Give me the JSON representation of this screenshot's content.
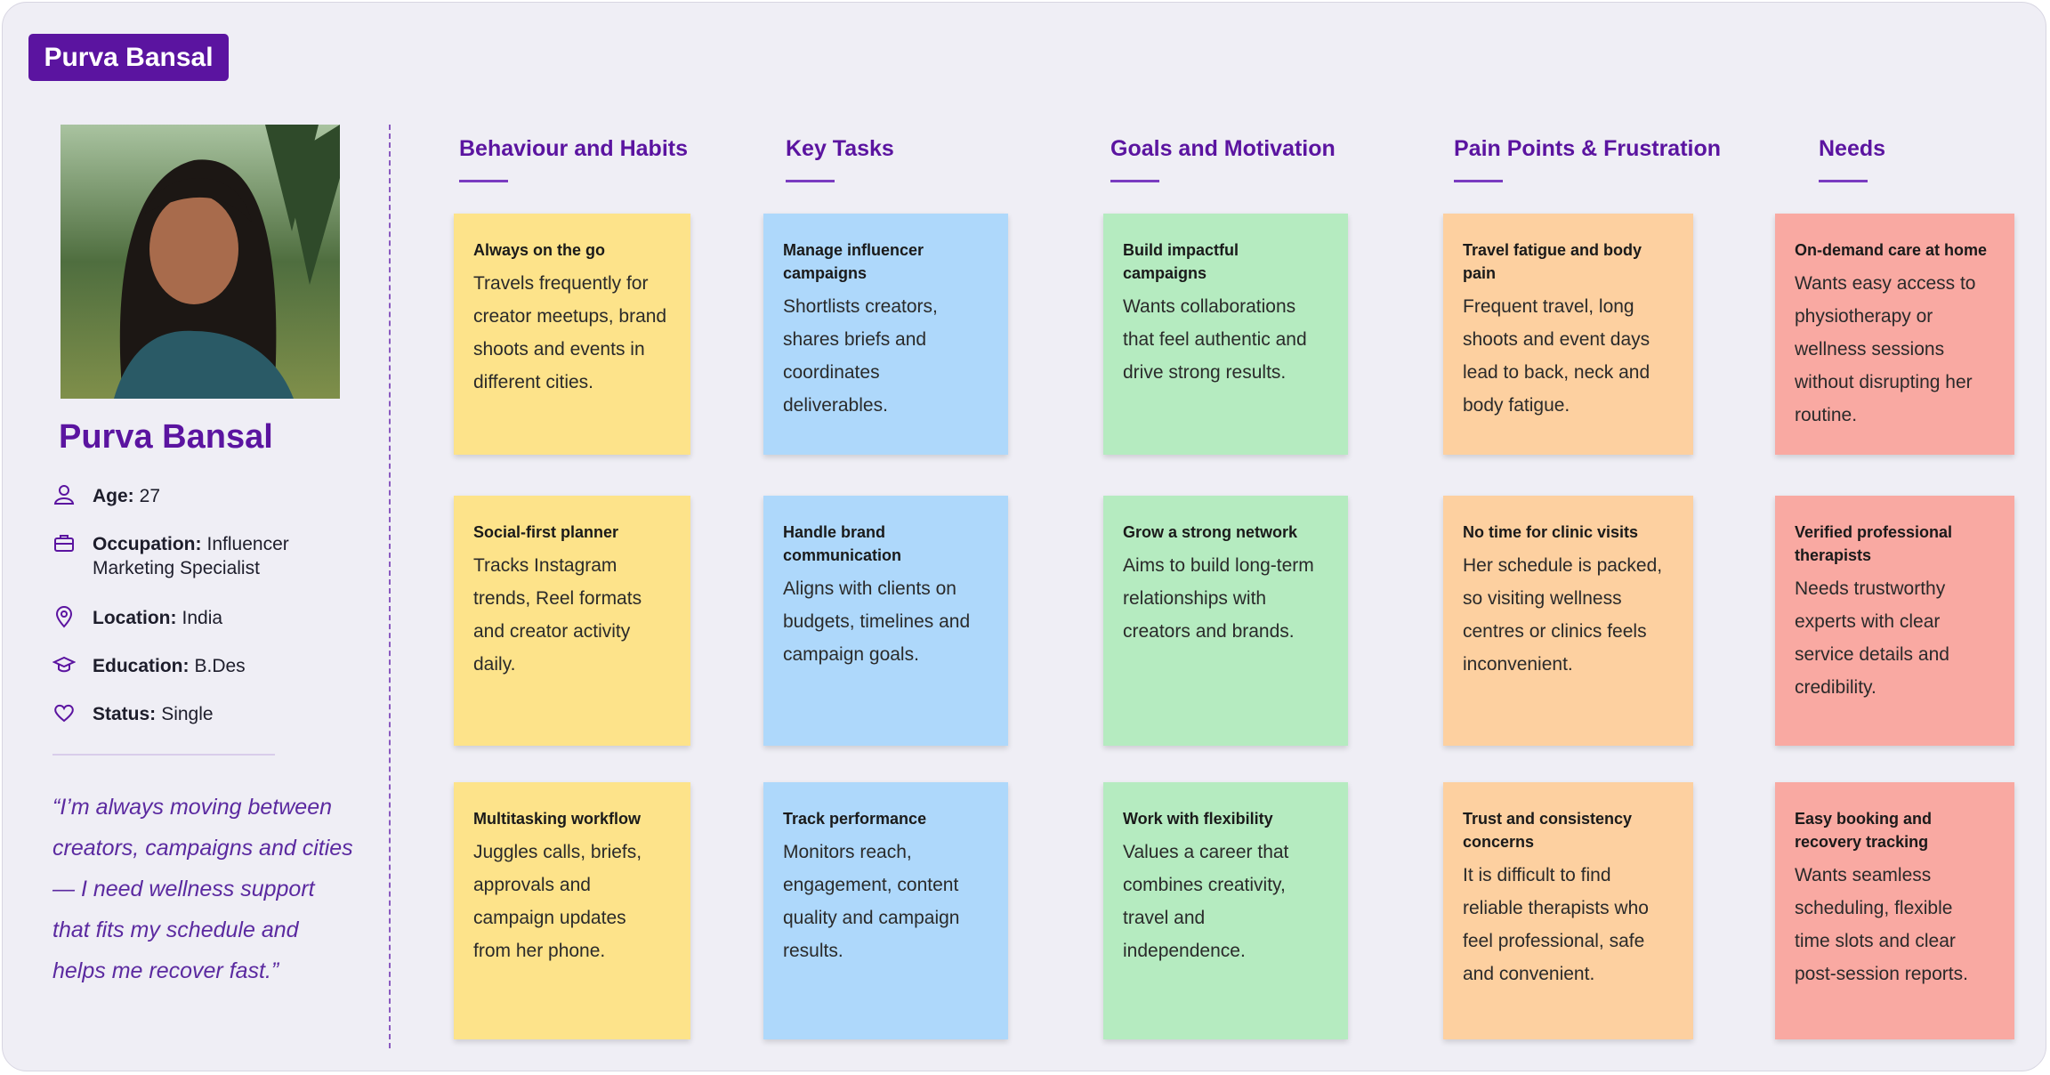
{
  "header": {
    "tag": "Purva Bansal"
  },
  "profile": {
    "name": "Purva Bansal",
    "details": [
      {
        "label": "Age:",
        "value": "27"
      },
      {
        "label": "Occupation:",
        "value": "Influencer Marketing Specialist"
      },
      {
        "label": "Location:",
        "value": "India"
      },
      {
        "label": "Education:",
        "value": "B.Des"
      },
      {
        "label": "Status:",
        "value": "Single"
      }
    ],
    "quote": "“I’m always moving between creators, campaigns and cities — I need wellness support that fits my schedule and helps me recover fast.”"
  },
  "columns": [
    {
      "title": "Behaviour and Habits",
      "cards": [
        {
          "title": "Always on the go",
          "body": "Travels frequently for creator meetups, brand shoots and events in different cities."
        },
        {
          "title": "Social-first planner",
          "body": "Tracks Instagram trends, Reel formats and creator activity daily."
        },
        {
          "title": "Multitasking workflow",
          "body": "Juggles calls, briefs, approvals and campaign updates from her phone."
        }
      ]
    },
    {
      "title": "Key Tasks",
      "cards": [
        {
          "title": "Manage influencer campaigns",
          "body": "Shortlists creators, shares briefs and coordinates deliverables."
        },
        {
          "title": "Handle brand communication",
          "body": "Aligns with clients on budgets, timelines and campaign goals."
        },
        {
          "title": "Track performance",
          "body": "Monitors reach, engagement, content quality and campaign results."
        }
      ]
    },
    {
      "title": "Goals and Motivation",
      "cards": [
        {
          "title": "Build impactful campaigns",
          "body": "Wants collaborations that feel authentic and drive strong results."
        },
        {
          "title": "Grow a strong network",
          "body": "Aims to build long-term relationships with creators and brands."
        },
        {
          "title": "Work with flexibility",
          "body": "Values a career that combines creativity, travel and independence."
        }
      ]
    },
    {
      "title": "Pain Points & Frustration",
      "cards": [
        {
          "title": "Travel fatigue and body pain",
          "body": "Frequent travel, long shoots and event days lead to back, neck and body fatigue."
        },
        {
          "title": "No time for clinic visits",
          "body": "Her schedule is packed, so visiting wellness centres or clinics feels inconvenient."
        },
        {
          "title": "Trust and consistency concerns",
          "body": "It is difficult to find reliable therapists who feel professional, safe and convenient."
        }
      ]
    },
    {
      "title": "Needs",
      "cards": [
        {
          "title": "On-demand care at home",
          "body": "Wants easy access to physiotherapy or wellness sessions without disrupting her routine."
        },
        {
          "title": "Verified professional therapists",
          "body": "Needs trustworthy experts with clear service details and credibility."
        },
        {
          "title": "Easy booking and recovery tracking",
          "body": "Wants seamless scheduling, flexible time slots and clear post-session reports."
        }
      ]
    }
  ]
}
